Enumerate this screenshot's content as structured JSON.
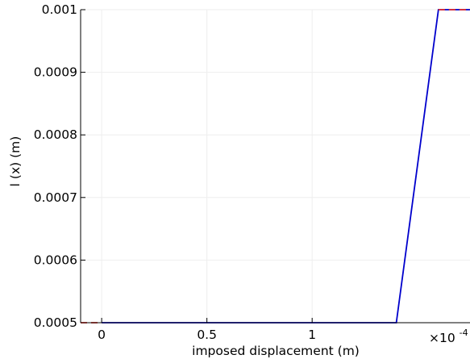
{
  "chart_data": {
    "type": "line",
    "title": "",
    "xlabel": "imposed displacement (m)",
    "ylabel": "l (x) (m)",
    "x_scale_label": "×10",
    "x_scale_exponent": "-4",
    "xlim": [
      -0.1,
      1.75
    ],
    "ylim": [
      0.0005,
      0.001
    ],
    "x_ticks": [
      {
        "value": 0,
        "label": "0"
      },
      {
        "value": 0.5,
        "label": "0.5"
      },
      {
        "value": 1,
        "label": "1"
      }
    ],
    "y_ticks": [
      {
        "value": 0.0005,
        "label": "0.0005"
      },
      {
        "value": 0.0006,
        "label": "0.0006"
      },
      {
        "value": 0.0007,
        "label": "0.0007"
      },
      {
        "value": 0.0008,
        "label": "0.0008"
      },
      {
        "value": 0.0009,
        "label": "0.0009"
      },
      {
        "value": 0.001,
        "label": "0.001"
      }
    ],
    "grid": true,
    "series": [
      {
        "color": "#0000cc",
        "style": "solid",
        "x": [
          0,
          1.4,
          1.6,
          1.75
        ],
        "y": [
          0.0005,
          0.0005,
          0.001,
          0.001
        ]
      },
      {
        "color": "#e8302a",
        "style": "dashed",
        "x": [
          -0.1,
          0
        ],
        "y": [
          0.0005,
          0.0005
        ]
      },
      {
        "color": "#e8302a",
        "style": "dashed",
        "x": [
          1.6,
          1.75
        ],
        "y": [
          0.001,
          0.001
        ]
      }
    ]
  }
}
